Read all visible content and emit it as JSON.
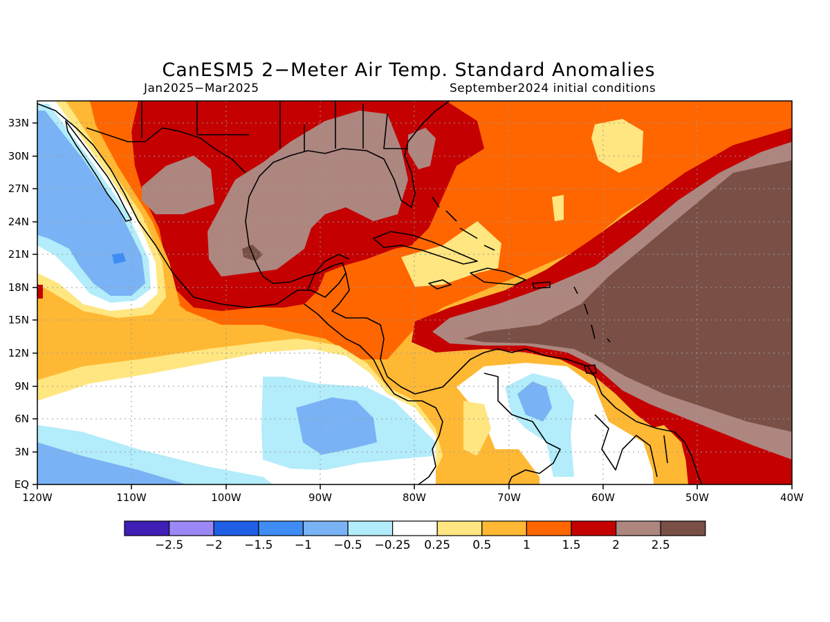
{
  "title": "CanESM5 2−Meter Air Temp. Standard Anomalies",
  "period": "Jan2025−Mar2025",
  "init": "September2024 initial conditions",
  "lon_labels": [
    "120W",
    "110W",
    "100W",
    "90W",
    "80W",
    "70W",
    "60W",
    "50W",
    "40W"
  ],
  "lat_labels": [
    "EQ",
    "3N",
    "6N",
    "9N",
    "12N",
    "15N",
    "18N",
    "21N",
    "24N",
    "27N",
    "30N",
    "33N"
  ],
  "chart_data": {
    "type": "heatmap",
    "title": "CanESM5 2−Meter Air Temp. Standard Anomalies",
    "lon_range": [
      -120,
      -40
    ],
    "lat_range": [
      0,
      35
    ],
    "colorbar": {
      "colors": [
        "#3f1fb5",
        "#9b87f5",
        "#1f5fe6",
        "#3f8cf5",
        "#79b3f5",
        "#b3ecfa",
        "#ffffff",
        "#ffe680",
        "#ffb833",
        "#ff6600",
        "#c40000",
        "#ad8680",
        "#7a5046"
      ],
      "labels": [
        "−2.5",
        "−2",
        "−1.5",
        "−1",
        "−0.5",
        "−0.25",
        "0.25",
        "0.5",
        "1",
        "1.5",
        "2",
        "2.5"
      ]
    }
  }
}
